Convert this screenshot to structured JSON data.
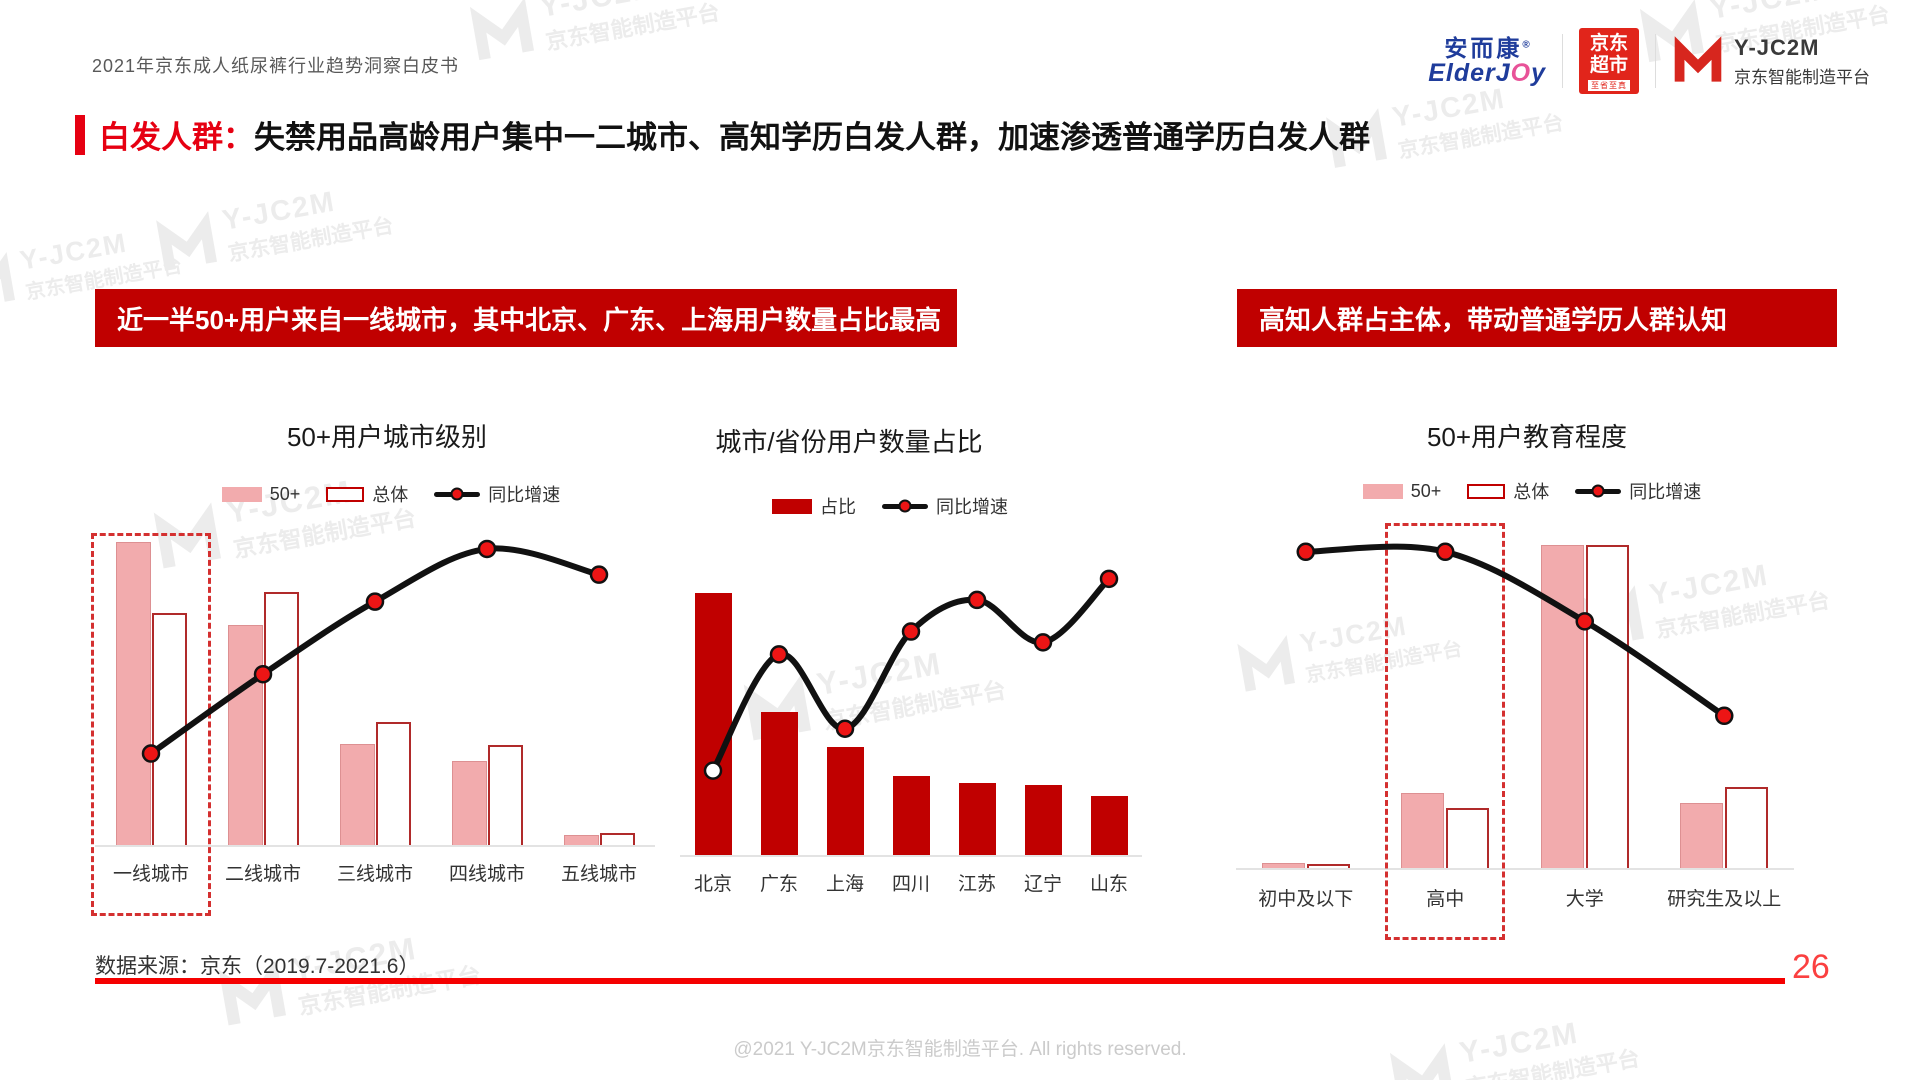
{
  "page": {
    "header_title": "2021年京东成人纸尿裤行业趋势洞察白皮书",
    "page_number": "26",
    "data_source": "数据来源：京东（2019.7-2021.6）",
    "copyright": "@2021 Y-JC2M京东智能制造平台. All rights reserved."
  },
  "logos": {
    "elderjoy": {
      "cn": "安而康",
      "reg": "®",
      "en_pre": "ElderJ",
      "en_o": "O",
      "en_post": "y"
    },
    "jd_market": {
      "line1": "京东",
      "line2": "超市",
      "slogan": "至省至真"
    },
    "yjc2m": {
      "name": "Y-JC2M",
      "subtitle": "京东智能制造平台"
    }
  },
  "watermark": {
    "line1": "Y-JC2M",
    "line2": "京东智能制造平台"
  },
  "headline": {
    "prefix": "白发人群：",
    "text": "失禁用品高龄用户集中一二城市、高知学历白发人群，加速渗透普通学历白发人群"
  },
  "banners": {
    "left": "近一半50+用户来自一线城市，其中北京、广东、上海用户数量占比最高",
    "right": "高知人群占主体，带动普通学历人群认知"
  },
  "colors": {
    "banner_red": "#C00000",
    "headline_red": "#E60012",
    "bar_red": "#C00000",
    "bar_pink": "#F2ABAD",
    "bar_outline_red": "#B02A2A",
    "line_black": "#111111",
    "marker_red": "#ED1515",
    "highlight_dash_red": "#D43030",
    "footer_line_red": "#F50000",
    "page_number_red": "#FB4040",
    "jd_red": "#E1251B",
    "elderjoy_blue": "#1F3C9B"
  },
  "chart_data": [
    {
      "type": "bar+line",
      "title": "50+用户城市级别",
      "categories": [
        "一线城市",
        "二线城市",
        "三线城市",
        "四线城市",
        "五线城市"
      ],
      "series": [
        {
          "name": "50+",
          "type": "bar",
          "style": "pink",
          "values": [
            45,
            32.7,
            15,
            12.4,
            1.5
          ]
        },
        {
          "name": "总体",
          "type": "bar",
          "style": "outline",
          "values": [
            34.4,
            37.6,
            18.3,
            14.9,
            1.8
          ]
        },
        {
          "name": "同比增速",
          "type": "line",
          "values": [
            29.5,
            55.1,
            78.5,
            95.5,
            87.2
          ]
        }
      ],
      "bar_axis_max": 46,
      "line_axis_max": 100,
      "units": "percent (axes unlabeled in source, values estimated from bar heights)",
      "legend_position": "top",
      "grid": false,
      "highlight_category_index": 0
    },
    {
      "type": "bar+line",
      "title": "城市/省份用户数量占比",
      "categories": [
        "北京",
        "广东",
        "上海",
        "四川",
        "江苏",
        "辽宁",
        "山东"
      ],
      "series": [
        {
          "name": "占比",
          "type": "bar",
          "style": "red",
          "values": [
            15,
            8.2,
            6.2,
            4.5,
            4.1,
            4.0,
            3.4
          ]
        },
        {
          "name": "同比增速",
          "type": "line",
          "values": [
            29.6,
            70.4,
            44.3,
            78.4,
            89.5,
            74.6,
            96.9
          ],
          "open_markers": [
            0
          ]
        }
      ],
      "bar_axis_max": 16.3,
      "line_axis_max": 100,
      "units": "percent (axes unlabeled in source, values estimated from bar heights)",
      "legend_position": "top",
      "grid": false
    },
    {
      "type": "bar+line",
      "title": "50+用户教育程度",
      "categories": [
        "初中及以下",
        "高中",
        "大学",
        "研究生及以上"
      ],
      "series": [
        {
          "name": "50+",
          "type": "bar",
          "style": "pink",
          "values": [
            1.1,
            16.2,
            70,
            14.2
          ]
        },
        {
          "name": "总体",
          "type": "bar",
          "style": "outline",
          "values": [
            0.9,
            13.1,
            70,
            17.5
          ]
        },
        {
          "name": "同比增速",
          "type": "line",
          "values": [
            96.4,
            96.4,
            75.2,
            46.4
          ]
        }
      ],
      "bar_axis_max": 71.1,
      "line_axis_max": 100,
      "units": "percent (axes unlabeled in source, values estimated from bar heights)",
      "legend_position": "top",
      "grid": false,
      "highlight_category_index": 1
    }
  ]
}
